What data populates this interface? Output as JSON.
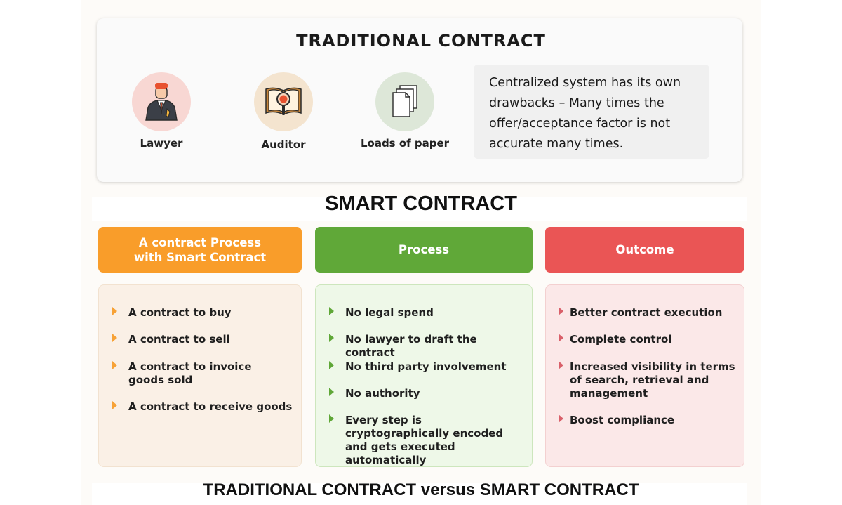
{
  "traditional": {
    "title": "TRADITIONAL CONTRACT",
    "roles": [
      {
        "label": "Lawyer",
        "icon": "lawyer-icon",
        "circle_color": "#f8d7d3"
      },
      {
        "label": "Auditor",
        "icon": "magnifier-book-icon",
        "circle_color": "#f4e4cf"
      },
      {
        "label": "Loads of paper",
        "icon": "documents-icon",
        "circle_color": "#dde7d8"
      }
    ],
    "note": "Centralized system has its own drawbacks – Many times the offer/acceptance factor is not accurate many times."
  },
  "smart": {
    "title": "SMART CONTRACT",
    "columns": [
      {
        "heading": "A contract Process\nwith Smart Contract",
        "header_color": "#f99d2a",
        "body_color": "#faf0e6",
        "border_color": "#f2e2d0",
        "bullet_color": "#f7a236",
        "items": [
          "A contract to buy",
          "A contract to sell",
          "A contract to invoice goods sold",
          "A contract to receive goods"
        ]
      },
      {
        "heading": "Process",
        "header_color": "#60a838",
        "body_color": "#eef8e8",
        "border_color": "#cde6bd",
        "bullet_color": "#5fa737",
        "items": [
          "No legal spend",
          "No lawyer to draft the contract",
          "No third party involvement",
          "No authority",
          "Every step is cryptographically encoded and gets executed automatically"
        ]
      },
      {
        "heading": "Outcome",
        "header_color": "#ea5555",
        "body_color": "#fbe8e8",
        "border_color": "#f3d0d0",
        "bullet_color": "#d9606a",
        "items": [
          "Better contract execution",
          "Complete control",
          "Increased visibility in terms of search, retrieval and management",
          "Boost compliance"
        ]
      }
    ]
  },
  "footer": {
    "title": "TRADITIONAL CONTRACT versus SMART CONTRACT"
  }
}
